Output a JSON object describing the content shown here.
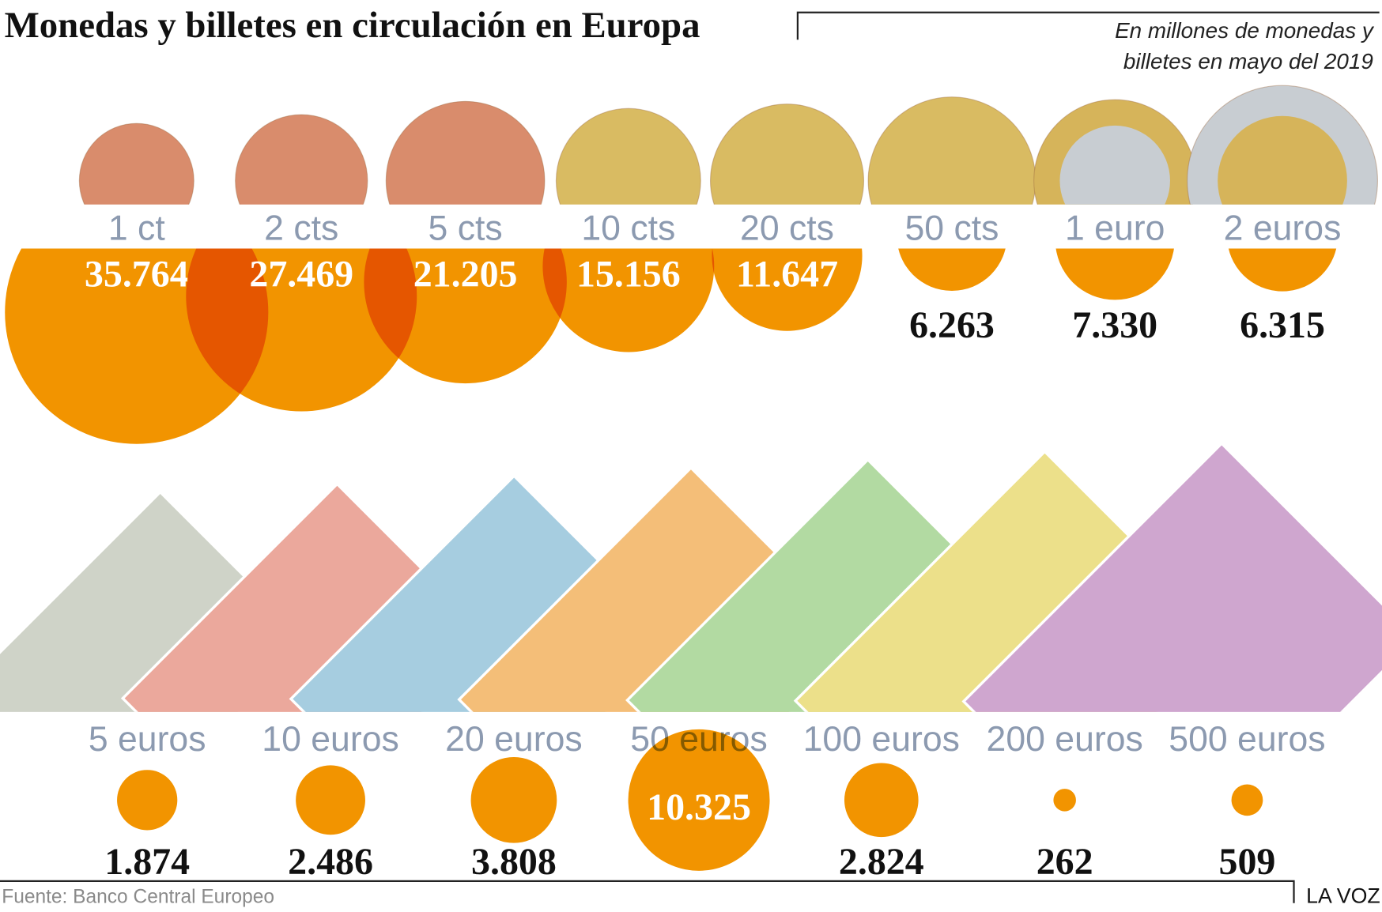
{
  "title": "Monedas y billetes en circulación en Europa",
  "subtitle": [
    "En millones de monedas y",
    "billetes en mayo del 2019"
  ],
  "source": "Fuente: Banco Central Europeo",
  "brand": "LA VOZ",
  "chart_data": [
    {
      "type": "bubble",
      "color": "#f29400",
      "categories": [
        "1 ct",
        "2 cts",
        "5 cts",
        "10 cts",
        "20 cts",
        "50 cts",
        "1 euro",
        "2 euros"
      ],
      "values": [
        35764,
        27469,
        21205,
        15156,
        11647,
        6263,
        7330,
        6315
      ],
      "value_labels": [
        "35.764",
        "27.469",
        "21.205",
        "15.156",
        "11.647",
        "6.263",
        "7.330",
        "6.315"
      ]
    },
    {
      "type": "bubble",
      "color": "#f29400",
      "categories": [
        "5 euros",
        "10 euros",
        "20 euros",
        "50 euros",
        "100 euros",
        "200 euros",
        "500 euros"
      ],
      "values": [
        1874,
        2486,
        3808,
        10325,
        2824,
        262,
        509
      ],
      "value_labels": [
        "1.874",
        "2.486",
        "3.808",
        "10.325",
        "2.824",
        "262",
        "509"
      ]
    }
  ]
}
